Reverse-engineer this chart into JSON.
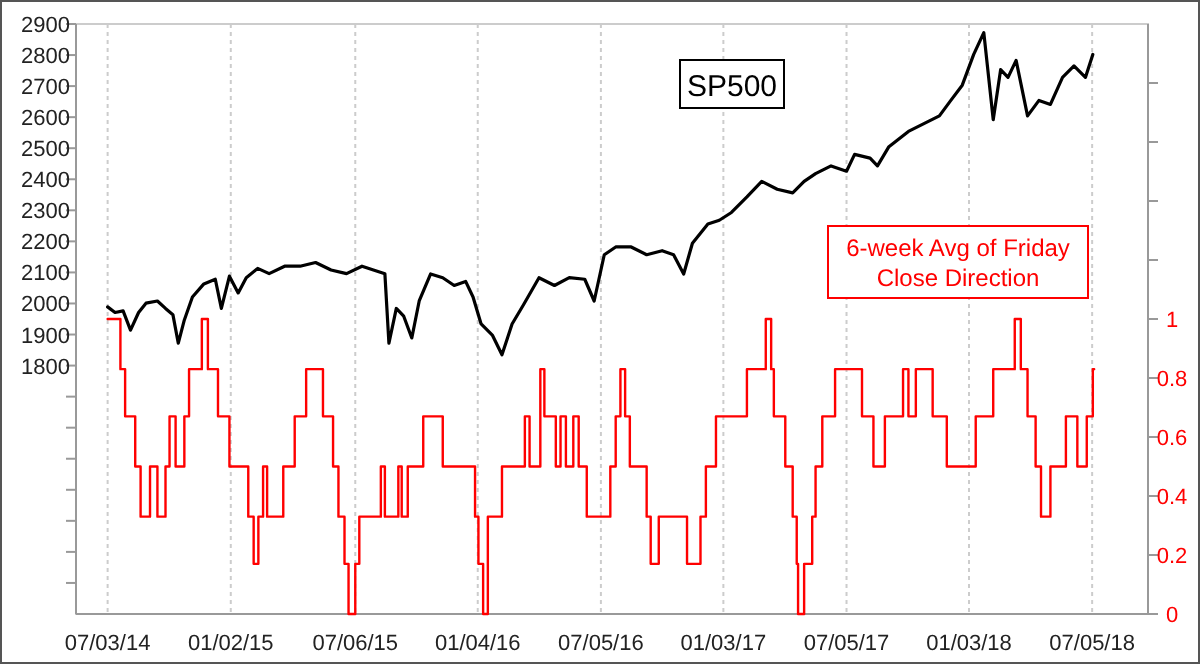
{
  "chart_data": {
    "type": "line",
    "xlim": [
      "2014-05-17",
      "2018-09-26"
    ],
    "xticks": [
      {
        "value": "2014-07-03",
        "label": "07/03/14"
      },
      {
        "value": "2015-01-02",
        "label": "01/02/15"
      },
      {
        "value": "2015-07-06",
        "label": "07/06/15"
      },
      {
        "value": "2016-01-04",
        "label": "01/04/16"
      },
      {
        "value": "2016-07-05",
        "label": "07/05/16"
      },
      {
        "value": "2017-01-03",
        "label": "01/03/17"
      },
      {
        "value": "2017-07-05",
        "label": "07/05/17"
      },
      {
        "value": "2018-01-03",
        "label": "01/03/18"
      },
      {
        "value": "2018-07-05",
        "label": "07/05/18"
      }
    ],
    "ylim": [
      1000,
      2900
    ],
    "yticks": [
      {
        "value": 1100,
        "label": null
      },
      {
        "value": 1200,
        "label": null
      },
      {
        "value": 1300,
        "label": null
      },
      {
        "value": 1400,
        "label": null
      },
      {
        "value": 1500,
        "label": null
      },
      {
        "value": 1600,
        "label": null
      },
      {
        "value": 1700,
        "label": null
      },
      1800,
      1900,
      2000,
      2100,
      2200,
      2300,
      2400,
      2500,
      2600,
      2700,
      2800,
      2900
    ],
    "y2lim": [
      0,
      2
    ],
    "y2ticks": [
      0,
      0.2,
      0.4,
      0.6,
      0.8,
      1,
      {
        "value": 1.2,
        "label": null
      },
      {
        "value": 1.4,
        "label": null
      },
      {
        "value": 1.6,
        "label": null
      },
      {
        "value": 1.8,
        "label": null
      }
    ],
    "grid": "x",
    "series": [
      {
        "name": "SP500",
        "color": "#000000",
        "x": [
          "2014-07-03",
          "2014-07-14",
          "2014-07-26",
          "2014-08-06",
          "2014-08-18",
          "2014-08-29",
          "2014-09-15",
          "2014-09-27",
          "2014-10-08",
          "2014-10-16",
          "2014-10-25",
          "2014-11-06",
          "2014-11-23",
          "2014-12-10",
          "2014-12-19",
          "2014-12-31",
          "2015-01-13",
          "2015-01-25",
          "2015-02-11",
          "2015-02-28",
          "2015-03-23",
          "2015-04-15",
          "2015-05-08",
          "2015-05-31",
          "2015-06-23",
          "2015-07-16",
          "2015-08-19",
          "2015-08-25",
          "2015-09-05",
          "2015-09-16",
          "2015-09-28",
          "2015-10-09",
          "2015-10-26",
          "2015-11-13",
          "2015-11-30",
          "2015-12-17",
          "2015-12-28",
          "2016-01-09",
          "2016-01-26",
          "2016-02-09",
          "2016-02-24",
          "2016-03-12",
          "2016-04-04",
          "2016-04-27",
          "2016-05-19",
          "2016-06-11",
          "2016-06-25",
          "2016-07-10",
          "2016-07-27",
          "2016-08-19",
          "2016-09-11",
          "2016-10-04",
          "2016-10-21",
          "2016-11-05",
          "2016-11-18",
          "2016-12-11",
          "2016-12-28",
          "2017-01-15",
          "2017-02-07",
          "2017-03-01",
          "2017-03-24",
          "2017-04-16",
          "2017-05-03",
          "2017-05-20",
          "2017-06-12",
          "2017-07-05",
          "2017-07-17",
          "2017-08-09",
          "2017-08-20",
          "2017-09-06",
          "2017-10-05",
          "2017-10-28",
          "2017-11-20",
          "2017-12-07",
          "2017-12-24",
          "2018-01-10",
          "2018-01-25",
          "2018-02-08",
          "2018-02-19",
          "2018-03-02",
          "2018-03-14",
          "2018-03-31",
          "2018-04-17",
          "2018-05-04",
          "2018-05-22",
          "2018-06-08",
          "2018-06-25",
          "2018-07-06"
        ],
        "values": [
          1989,
          1971,
          1976,
          1914,
          1971,
          2001,
          2008,
          1984,
          1964,
          1872,
          1947,
          2021,
          2063,
          2078,
          1984,
          2088,
          2034,
          2083,
          2113,
          2096,
          2120,
          2120,
          2132,
          2108,
          2096,
          2120,
          2096,
          1872,
          1984,
          1959,
          1889,
          2008,
          2095,
          2083,
          2058,
          2071,
          2021,
          1934,
          1897,
          1835,
          1934,
          1996,
          2083,
          2058,
          2083,
          2078,
          2008,
          2157,
          2182,
          2182,
          2157,
          2170,
          2157,
          2095,
          2194,
          2256,
          2268,
          2293,
          2343,
          2393,
          2368,
          2356,
          2393,
          2418,
          2443,
          2426,
          2480,
          2468,
          2443,
          2505,
          2554,
          2579,
          2604,
          2654,
          2703,
          2802,
          2872,
          2592,
          2753,
          2728,
          2783,
          2604,
          2654,
          2641,
          2728,
          2765,
          2728,
          2802
        ]
      },
      {
        "name": "6-week Avg of Friday Close Direction",
        "color": "#ff0000",
        "type": "step",
        "axis": "y2",
        "x": [
          "2014-07-03",
          "2014-07-22",
          "2014-07-29",
          "2014-08-13",
          "2014-08-21",
          "2014-09-04",
          "2014-09-15",
          "2014-09-27",
          "2014-10-03",
          "2014-10-12",
          "2014-10-25",
          "2014-11-01",
          "2014-11-20",
          "2014-11-29",
          "2014-12-14",
          "2014-12-31",
          "2015-01-28",
          "2015-02-05",
          "2015-02-12",
          "2015-02-19",
          "2015-02-25",
          "2015-03-21",
          "2015-04-07",
          "2015-04-24",
          "2015-05-19",
          "2015-06-03",
          "2015-06-11",
          "2015-06-20",
          "2015-06-26",
          "2015-07-06",
          "2015-07-12",
          "2015-08-13",
          "2015-08-19",
          "2015-09-08",
          "2015-09-13",
          "2015-09-22",
          "2015-10-15",
          "2015-11-13",
          "2015-12-31",
          "2016-01-05",
          "2016-01-12",
          "2016-01-19",
          "2016-02-09",
          "2016-03-14",
          "2016-03-21",
          "2016-04-06",
          "2016-04-12",
          "2016-04-29",
          "2016-05-06",
          "2016-05-14",
          "2016-05-25",
          "2016-06-02",
          "2016-06-14",
          "2016-07-19",
          "2016-07-27",
          "2016-08-03",
          "2016-08-10",
          "2016-08-17",
          "2016-09-11",
          "2016-09-17",
          "2016-09-29",
          "2016-11-10",
          "2016-11-30",
          "2016-12-08",
          "2016-12-23",
          "2017-02-07",
          "2017-03-07",
          "2017-03-15",
          "2017-03-19",
          "2017-04-05",
          "2017-04-16",
          "2017-04-22",
          "2017-04-24",
          "2017-05-03",
          "2017-05-15",
          "2017-05-20",
          "2017-05-30",
          "2017-06-18",
          "2017-07-28",
          "2017-08-14",
          "2017-08-31",
          "2017-09-27",
          "2017-10-05",
          "2017-10-16",
          "2017-11-10",
          "2017-12-01",
          "2018-01-13",
          "2018-02-08",
          "2018-03-12",
          "2018-03-21",
          "2018-03-31",
          "2018-04-12",
          "2018-04-20",
          "2018-05-04",
          "2018-05-27",
          "2018-06-13",
          "2018-06-27",
          "2018-07-06",
          "2018-07-08"
        ],
        "values": [
          1,
          0.83,
          0.67,
          0.5,
          0.33,
          0.5,
          0.33,
          0.5,
          0.67,
          0.5,
          0.67,
          0.83,
          1,
          0.83,
          0.67,
          0.5,
          0.33,
          0.17,
          0.33,
          0.5,
          0.33,
          0.5,
          0.67,
          0.83,
          0.67,
          0.5,
          0.33,
          0.17,
          0,
          0.17,
          0.33,
          0.5,
          0.33,
          0.5,
          0.33,
          0.5,
          0.67,
          0.5,
          0.33,
          0.17,
          0,
          0.33,
          0.5,
          0.67,
          0.5,
          0.83,
          0.67,
          0.5,
          0.67,
          0.5,
          0.67,
          0.5,
          0.33,
          0.5,
          0.67,
          0.83,
          0.67,
          0.5,
          0.33,
          0.17,
          0.33,
          0.17,
          0.33,
          0.5,
          0.67,
          0.83,
          1,
          0.83,
          0.67,
          0.5,
          0.33,
          0.17,
          0,
          0.17,
          0.33,
          0.5,
          0.67,
          0.83,
          0.67,
          0.5,
          0.67,
          0.83,
          0.67,
          0.83,
          0.67,
          0.5,
          0.67,
          0.83,
          1,
          0.83,
          0.67,
          0.5,
          0.33,
          0.5,
          0.67,
          0.5,
          0.67,
          0.83,
          0.83
        ]
      }
    ]
  }
}
